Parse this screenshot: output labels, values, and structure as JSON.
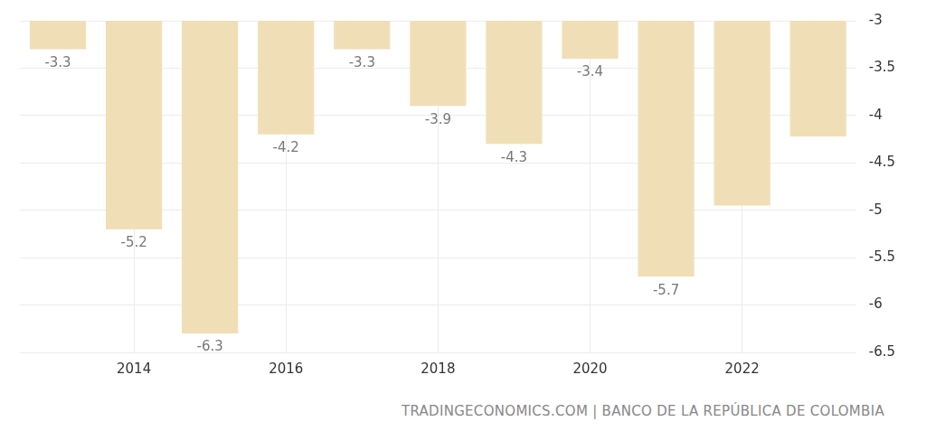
{
  "chart_data": {
    "type": "bar",
    "source": "TRADINGECONOMICS.COM | BANCO DE LA REPÚBLICA DE COLOMBIA",
    "categories": [
      null,
      "2014",
      null,
      "2016",
      null,
      "2018",
      null,
      "2020",
      null,
      "2022",
      null
    ],
    "values": [
      -3.3,
      -5.2,
      -6.3,
      -4.2,
      -3.3,
      -3.9,
      -4.3,
      -3.4,
      -5.7,
      -4.95,
      -4.22
    ],
    "value_labels": [
      "-3.3",
      "-5.2",
      "-6.3",
      "-4.2",
      "-3.3",
      "-3.9",
      "-4.3",
      "-3.4",
      "-5.7",
      null,
      null
    ],
    "data_labels": true,
    "color": "#f0dfb6",
    "ylim": [
      -6.5,
      -3
    ],
    "yticks": [
      -6.5,
      -6,
      -5.5,
      -5,
      -4.5,
      -4,
      -3.5,
      -3
    ],
    "grid": true
  }
}
